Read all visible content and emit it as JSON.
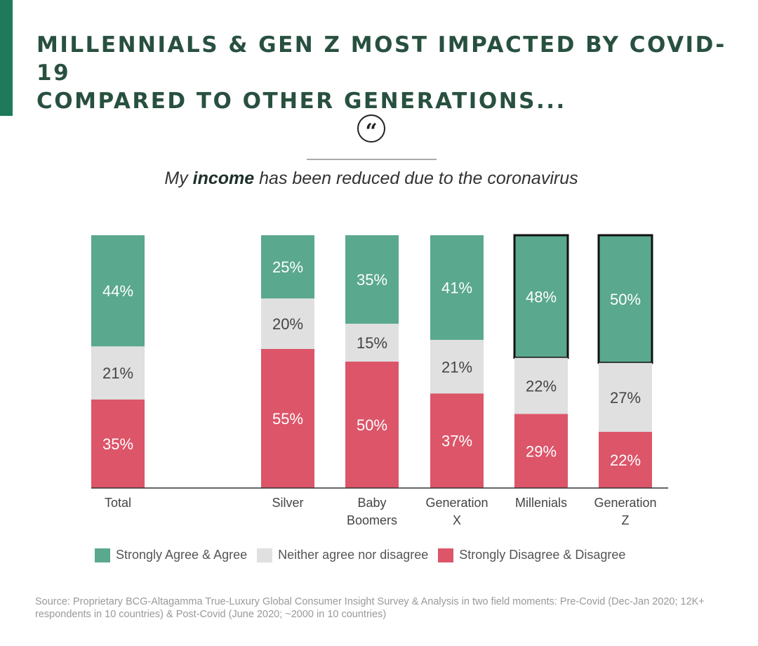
{
  "title_lines": [
    "MILLENNIALS & GEN Z MOST IMPACTED BY COVID-19",
    "COMPARED TO OTHER GENERATIONS..."
  ],
  "quote_icon": "quote-open-icon",
  "quote_glyph": "“",
  "subtitle": {
    "pre": "My ",
    "bold": "income",
    "post": " has been reduced due to the coronavirus"
  },
  "colors": {
    "agree": "#5aa88e",
    "neutral": "#e0e0e0",
    "disagree": "#dc5569",
    "title": "#28503f",
    "accent": "#1e7a5a"
  },
  "chart_data": {
    "type": "bar",
    "stacked": true,
    "orientation": "vertical",
    "title": "My income has been reduced due to the coronavirus",
    "categories": [
      [
        "Total"
      ],
      [
        "Silver"
      ],
      [
        "Baby",
        "Boomers"
      ],
      [
        "Generation",
        "X"
      ],
      [
        "Millenials"
      ],
      [
        "Generation",
        "Z"
      ]
    ],
    "highlighted": [
      false,
      false,
      false,
      false,
      true,
      true
    ],
    "series": [
      {
        "name": "Strongly Agree & Agree",
        "key": "agree",
        "values": [
          44,
          25,
          35,
          41,
          48,
          50
        ]
      },
      {
        "name": "Neither agree nor disagree",
        "key": "neutral",
        "values": [
          21,
          20,
          15,
          21,
          22,
          27
        ]
      },
      {
        "name": "Strongly Disagree & Disagree",
        "key": "disagree",
        "values": [
          35,
          55,
          50,
          37,
          29,
          22
        ]
      }
    ],
    "unit": "%",
    "legend_position": "bottom"
  },
  "source": "Source: Proprietary BCG-Altagamma True-Luxury Global Consumer Insight Survey & Analysis in two field moments: Pre-Covid (Dec-Jan 2020; 12K+ respondents in 10 countries) & Post-Covid (June 2020; ~2000 in 10 countries)"
}
